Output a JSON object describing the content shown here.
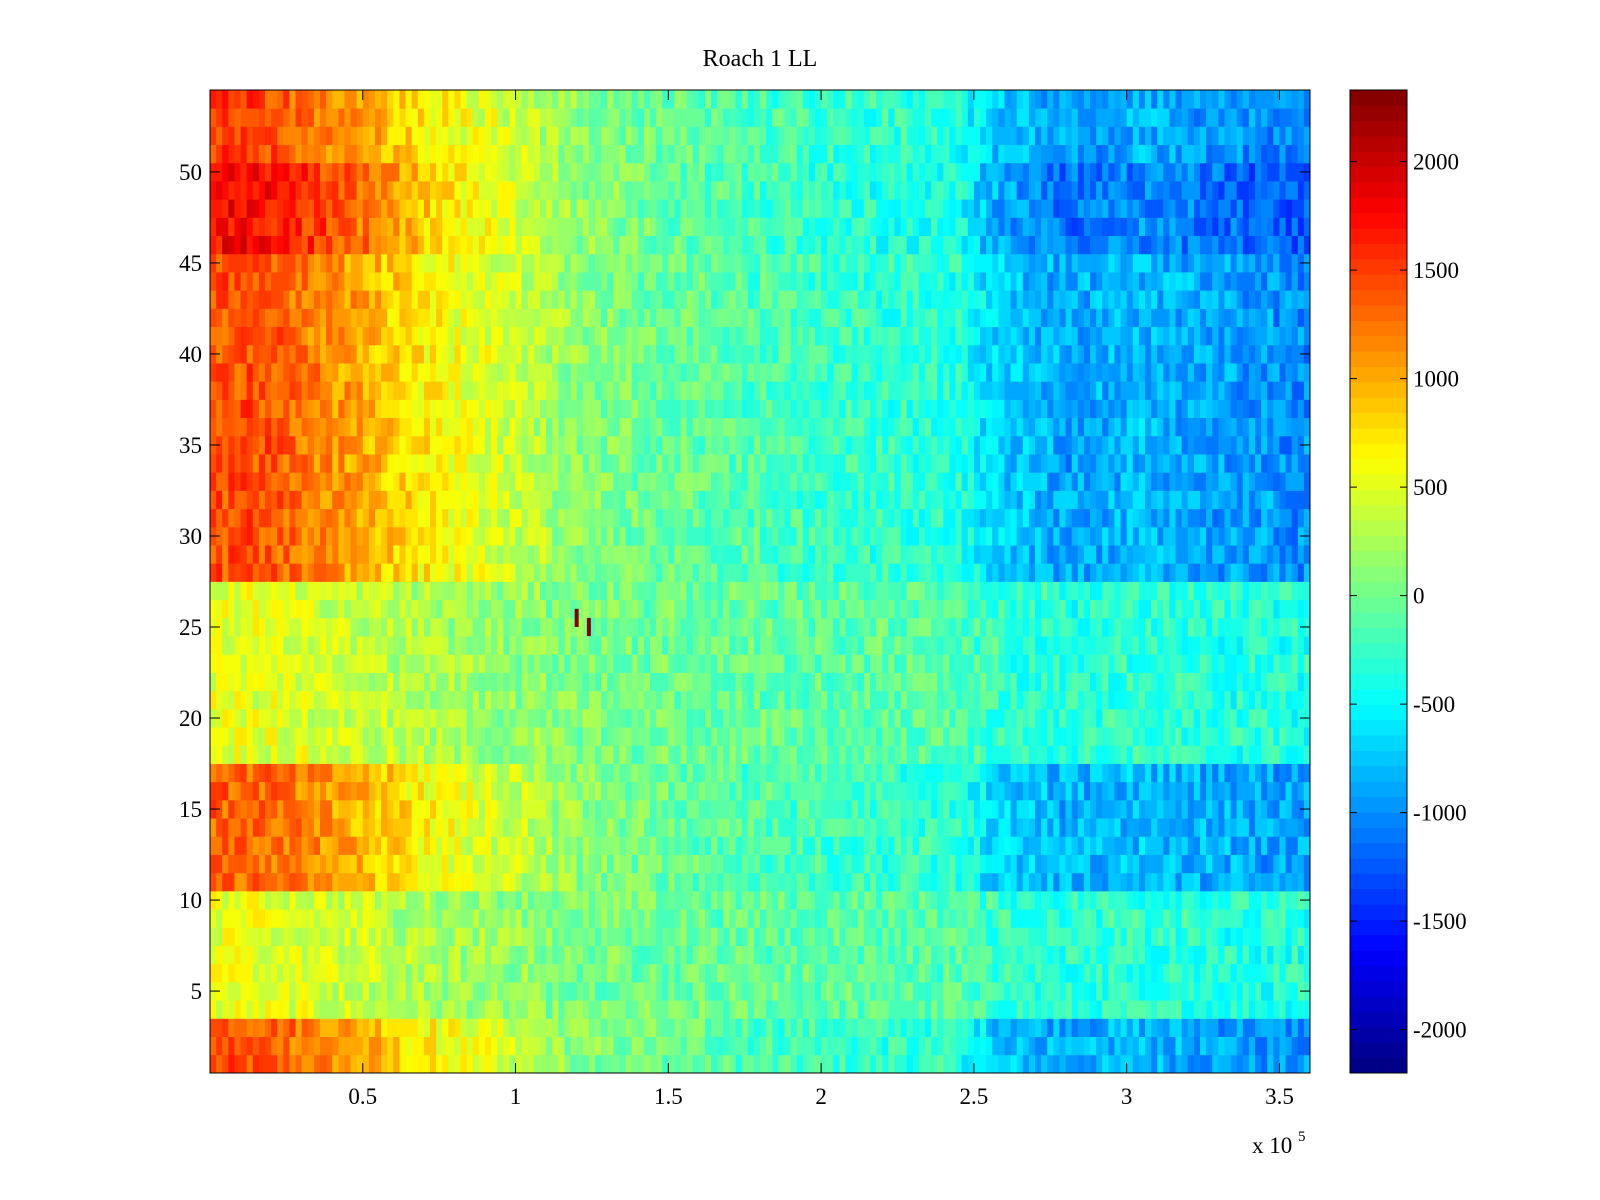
{
  "chart_data": {
    "type": "heatmap",
    "title": "Roach 1 LL",
    "xlabel": "",
    "ylabel": "",
    "x_multiplier": {
      "base": "x 10",
      "exponent": "5"
    },
    "xlim": [
      0,
      360000
    ],
    "ylim": [
      0.5,
      54.5
    ],
    "x_ticks": [
      {
        "value": 50000,
        "label": "0.5"
      },
      {
        "value": 100000,
        "label": "1"
      },
      {
        "value": 150000,
        "label": "1.5"
      },
      {
        "value": 200000,
        "label": "2"
      },
      {
        "value": 250000,
        "label": "2.5"
      },
      {
        "value": 300000,
        "label": "3"
      },
      {
        "value": 350000,
        "label": "3.5"
      }
    ],
    "y_ticks": [
      {
        "value": 5,
        "label": "5"
      },
      {
        "value": 10,
        "label": "10"
      },
      {
        "value": 15,
        "label": "15"
      },
      {
        "value": 20,
        "label": "20"
      },
      {
        "value": 25,
        "label": "25"
      },
      {
        "value": 30,
        "label": "30"
      },
      {
        "value": 35,
        "label": "35"
      },
      {
        "value": 40,
        "label": "40"
      },
      {
        "value": 45,
        "label": "45"
      },
      {
        "value": 50,
        "label": "50"
      }
    ],
    "colorbar": {
      "colormap": "jet",
      "clim": [
        -2200,
        2330
      ],
      "ticks": [
        {
          "value": 2000,
          "label": "2000"
        },
        {
          "value": 1500,
          "label": "1500"
        },
        {
          "value": 1000,
          "label": "1000"
        },
        {
          "value": 500,
          "label": "500"
        },
        {
          "value": 0,
          "label": "0"
        },
        {
          "value": -500,
          "label": "-500"
        },
        {
          "value": -1000,
          "label": "-1000"
        },
        {
          "value": -1500,
          "label": "-1500"
        },
        {
          "value": -2000,
          "label": "-2000"
        }
      ]
    },
    "grid": false,
    "x_profile": [
      {
        "x": 0,
        "value": 1500
      },
      {
        "x": 20000,
        "value": 1450
      },
      {
        "x": 50000,
        "value": 1050
      },
      {
        "x": 75000,
        "value": 650
      },
      {
        "x": 100000,
        "value": 400
      },
      {
        "x": 120000,
        "value": 120
      },
      {
        "x": 150000,
        "value": -50
      },
      {
        "x": 200000,
        "value": -250
      },
      {
        "x": 245000,
        "value": -350
      },
      {
        "x": 255000,
        "value": -700
      },
      {
        "x": 280000,
        "value": -950
      },
      {
        "x": 305000,
        "value": -850
      },
      {
        "x": 330000,
        "value": -950
      },
      {
        "x": 360000,
        "value": -1050
      }
    ],
    "row_bands": [
      {
        "y_from": 1,
        "y_to": 3,
        "strength": 0.95
      },
      {
        "y_from": 4,
        "y_to": 10,
        "strength": 0.35
      },
      {
        "y_from": 11,
        "y_to": 17,
        "strength": 0.9
      },
      {
        "y_from": 18,
        "y_to": 27,
        "strength": 0.35
      },
      {
        "y_from": 28,
        "y_to": 45,
        "strength": 0.95
      },
      {
        "y_from": 46,
        "y_to": 50,
        "strength": 1.2
      },
      {
        "y_from": 51,
        "y_to": 54,
        "strength": 1.0
      }
    ],
    "outlier_cells": [
      {
        "x": 120000,
        "y": 25.5,
        "value": 2300
      },
      {
        "x": 124000,
        "y": 25,
        "value": 2300
      }
    ]
  }
}
